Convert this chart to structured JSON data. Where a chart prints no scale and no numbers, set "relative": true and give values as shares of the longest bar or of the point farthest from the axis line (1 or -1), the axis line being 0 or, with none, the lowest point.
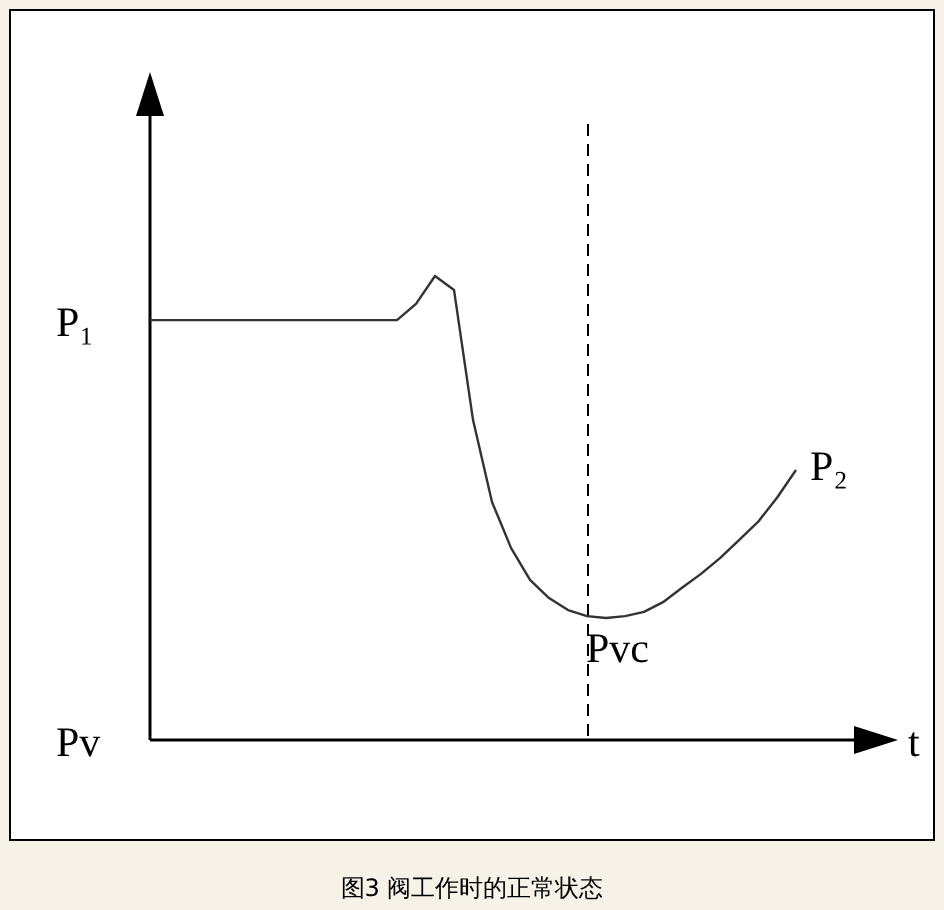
{
  "chart_data": {
    "type": "line",
    "relative": true,
    "title": "图3 阀工作时的正常状态",
    "xlabel": "t",
    "categories": [
      null,
      null,
      null,
      null,
      null,
      null,
      null,
      null,
      null,
      null,
      null,
      null,
      null,
      null,
      null,
      null,
      null,
      null,
      null,
      null,
      null,
      null,
      null,
      null,
      null,
      null,
      null,
      null,
      null,
      null,
      null,
      null,
      null,
      null,
      null
    ],
    "series": [
      {
        "color": "#333333",
        "values": [
          0.905,
          0.905,
          0.905,
          0.905,
          0.905,
          0.905,
          0.905,
          0.905,
          0.905,
          0.905,
          0.905,
          0.905,
          0.905,
          0.905,
          0.94,
          1,
          0.97,
          0.69,
          0.513,
          0.414,
          0.345,
          0.306,
          0.28,
          0.267,
          0.263,
          0.267,
          0.276,
          0.297,
          0.328,
          0.358,
          0.392,
          0.431,
          0.47,
          0.522,
          0.582
        ]
      }
    ],
    "annotations": [
      "P₁",
      "Pv",
      {
        "text": "Pvc",
        "y": 0.263
      },
      "P₂"
    ],
    "marker": "none",
    "line_style": "solid"
  }
}
